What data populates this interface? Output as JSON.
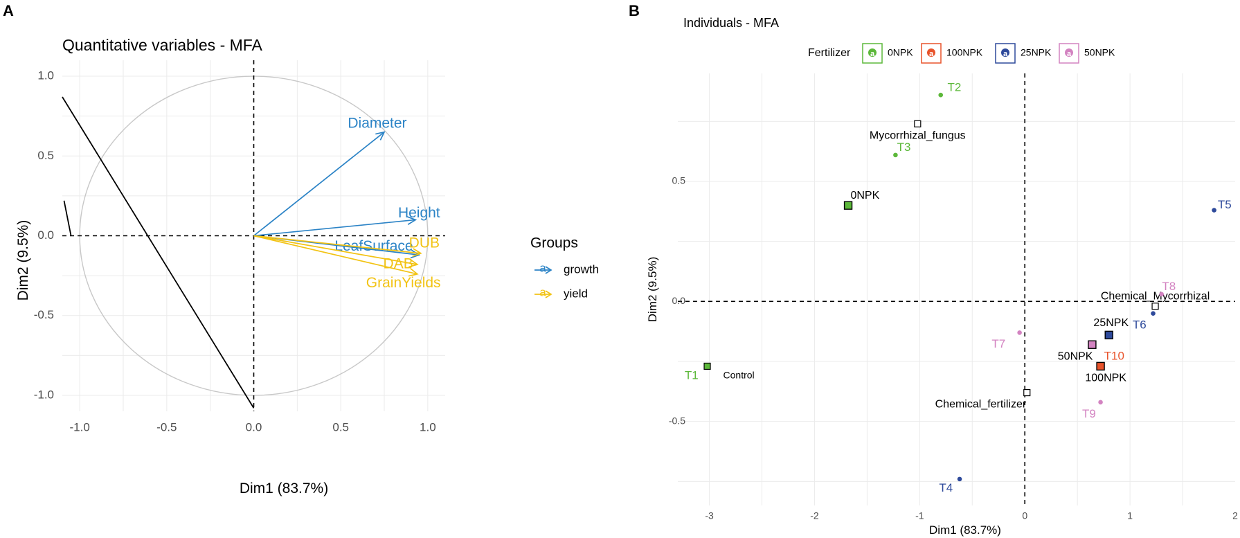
{
  "panels": {
    "a": {
      "letter": "A"
    },
    "b": {
      "letter": "B"
    }
  },
  "colors": {
    "growth": "#2b83c6",
    "yield": "#f2c314",
    "0NPK": "#5cb83a",
    "100NPK": "#e8532b",
    "25NPK": "#2e4a9b",
    "50NPK": "#d383c1",
    "circle": "#c8c8c8",
    "grid": "#ebebeb",
    "axis_text": "#4d4d4d"
  },
  "chart_data": [
    {
      "type": "scatter",
      "subtype": "correlation-circle",
      "title": "Quantitative variables - MFA",
      "xlabel": "Dim1 (83.7%)",
      "ylabel": "Dim2 (9.5%)",
      "xlim": [
        -1.1,
        1.1
      ],
      "ylim": [
        -1.1,
        1.1
      ],
      "xticks": [
        -1.0,
        -0.5,
        0.0,
        0.5,
        1.0
      ],
      "xtick_labels": [
        "-1.0",
        "-0.5",
        "0.0",
        "0.5",
        "1.0"
      ],
      "yticks": [
        -1.0,
        -0.5,
        0.0,
        0.5,
        1.0
      ],
      "ytick_labels": [
        "-1.0",
        "-0.5",
        "0.0",
        "0.5",
        "1.0"
      ],
      "circle_radius": 1.0,
      "legend": {
        "title": "Groups",
        "placement": "right",
        "entries": [
          {
            "group": "growth",
            "label": "growth",
            "glyph": "a"
          },
          {
            "group": "yield",
            "label": "yield",
            "glyph": "a"
          }
        ]
      },
      "vectors": [
        {
          "name": "Diameter",
          "group": "growth",
          "x": 0.75,
          "y": 0.65,
          "label_x": 0.71,
          "label_y": 0.7
        },
        {
          "name": "Height",
          "group": "growth",
          "x": 0.93,
          "y": 0.1,
          "label_x": 0.95,
          "label_y": 0.14
        },
        {
          "name": "LeafSurface",
          "group": "growth",
          "x": 0.95,
          "y": -0.12,
          "label_x": 0.69,
          "label_y": -0.07
        },
        {
          "name": "DUB",
          "group": "yield",
          "x": 0.96,
          "y": -0.11,
          "label_x": 0.98,
          "label_y": -0.05
        },
        {
          "name": "DAB",
          "group": "yield",
          "x": 0.94,
          "y": -0.18,
          "label_x": 0.83,
          "label_y": -0.18
        },
        {
          "name": "GrainYields",
          "group": "yield",
          "x": 0.94,
          "y": -0.24,
          "label_x": 0.86,
          "label_y": -0.3
        }
      ],
      "reference_line": {
        "from": [
          -1.1,
          0.87
        ],
        "to": [
          0.0,
          -1.08
        ]
      }
    },
    {
      "type": "scatter",
      "title": "Individuals - MFA",
      "xlabel": "Dim1 (83.7%)",
      "ylabel": "Dim2 (9.5%)",
      "xlim": [
        -3.3,
        2.0
      ],
      "ylim": [
        -0.85,
        0.95
      ],
      "xticks": [
        -3,
        -2,
        -1,
        0,
        1,
        2
      ],
      "xtick_labels": [
        "-3",
        "-2",
        "-1",
        "0",
        "1",
        "2"
      ],
      "yticks": [
        -0.5,
        0.0,
        0.5
      ],
      "ytick_labels": [
        "-0.5",
        "0.0",
        "0.5"
      ],
      "legend": {
        "title": "Fertilizer",
        "placement": "top",
        "entries": [
          "0NPK",
          "100NPK",
          "25NPK",
          "50NPK"
        ]
      },
      "individuals": [
        {
          "label": "T1",
          "group": "0NPK",
          "x": -3.02,
          "y": -0.27,
          "label_x": -3.17,
          "label_y": -0.31
        },
        {
          "label": "T2",
          "group": "0NPK",
          "x": -0.8,
          "y": 0.86,
          "label_x": -0.67,
          "label_y": 0.89
        },
        {
          "label": "T3",
          "group": "0NPK",
          "x": -1.23,
          "y": 0.61,
          "label_x": -1.15,
          "label_y": 0.64
        },
        {
          "label": "T4",
          "group": "25NPK",
          "x": -0.62,
          "y": -0.74,
          "label_x": -0.75,
          "label_y": -0.78
        },
        {
          "label": "T5",
          "group": "25NPK",
          "x": 1.8,
          "y": 0.38,
          "label_x": 1.9,
          "label_y": 0.4
        },
        {
          "label": "T6",
          "group": "25NPK",
          "x": 1.22,
          "y": -0.05,
          "label_x": 1.09,
          "label_y": -0.1
        },
        {
          "label": "T7",
          "group": "50NPK",
          "x": -0.05,
          "y": -0.13,
          "label_x": -0.25,
          "label_y": -0.18
        },
        {
          "label": "T8",
          "group": "50NPK",
          "x": 1.3,
          "y": 0.03,
          "label_x": 1.37,
          "label_y": 0.06
        },
        {
          "label": "T9",
          "group": "50NPK",
          "x": 0.72,
          "y": -0.42,
          "label_x": 0.61,
          "label_y": -0.47
        },
        {
          "label": "T10",
          "group": "100NPK",
          "x": 0.72,
          "y": -0.27,
          "label_x": 0.85,
          "label_y": -0.23
        }
      ],
      "group_centroids": [
        {
          "label": "0NPK",
          "group": "0NPK",
          "x": -1.68,
          "y": 0.4,
          "label_x": -1.52,
          "label_y": 0.44
        },
        {
          "label": "25NPK",
          "group": "25NPK",
          "x": 0.8,
          "y": -0.14,
          "label_x": 0.82,
          "label_y": -0.09
        },
        {
          "label": "50NPK",
          "group": "50NPK",
          "x": 0.64,
          "y": -0.18,
          "label_x": 0.48,
          "label_y": -0.23
        },
        {
          "label": "100NPK",
          "group": "100NPK",
          "x": 0.72,
          "y": -0.27,
          "label_x": 0.77,
          "label_y": -0.32
        }
      ],
      "supplementary_points": [
        {
          "label": "Mycorrhizal_fungus",
          "x": -1.02,
          "y": 0.74,
          "label_x": -1.02,
          "label_y": 0.69
        },
        {
          "label": "Control",
          "x": -3.02,
          "y": -0.27,
          "label_x": -2.72,
          "label_y": -0.31
        },
        {
          "label": "Chemical_Mycorrhizal",
          "x": 1.24,
          "y": -0.02,
          "label_x": 1.24,
          "label_y": 0.02
        },
        {
          "label": "Chemical_fertilizer",
          "x": 0.02,
          "y": -0.38,
          "label_x": -0.42,
          "label_y": -0.43
        }
      ]
    }
  ]
}
